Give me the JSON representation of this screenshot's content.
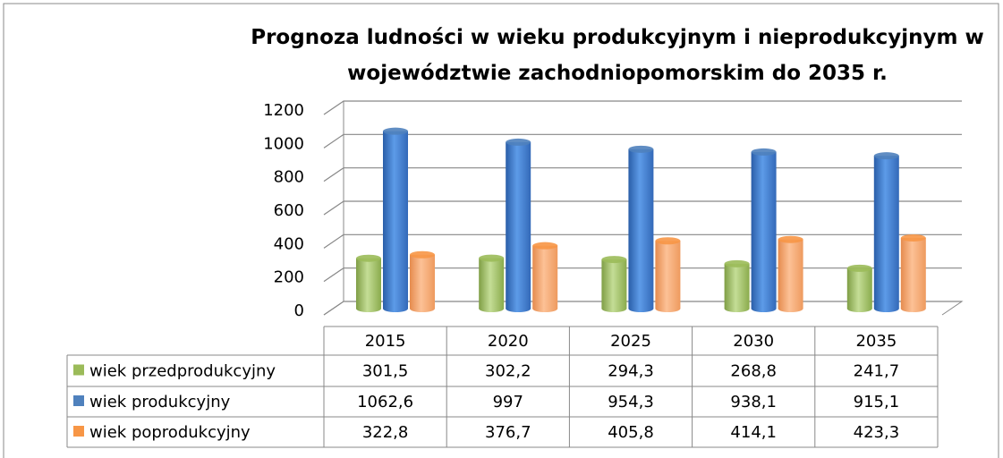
{
  "chart_data": {
    "type": "bar",
    "title": "Prognoza ludności w wieku produkcyjnym i nieprodukcyjnym w województwie zachodniopomorskim do 2035 r.",
    "categories": [
      "2015",
      "2020",
      "2025",
      "2030",
      "2035"
    ],
    "series": [
      {
        "name": "wiek przedprodukcyjny",
        "color": "#9bbb59",
        "values": [
          301.5,
          302.2,
          294.3,
          268.8,
          241.7
        ],
        "value_labels": [
          "301,5",
          "302,2",
          "294,3",
          "268,8",
          "241,7"
        ]
      },
      {
        "name": "wiek produkcyjny",
        "color": "#4f81bd",
        "values": [
          1062.6,
          997,
          954.3,
          938.1,
          915.1
        ],
        "value_labels": [
          "1062,6",
          "997",
          "954,3",
          "938,1",
          "915,1"
        ]
      },
      {
        "name": "wiek poprodukcyjny",
        "color": "#f79646",
        "values": [
          322.8,
          376.7,
          405.8,
          414.1,
          423.3
        ],
        "value_labels": [
          "322,8",
          "376,7",
          "405,8",
          "414,1",
          "423,3"
        ]
      }
    ],
    "ylim": [
      0,
      1200
    ],
    "yticks": [
      0,
      200,
      400,
      600,
      800,
      1000,
      1200
    ],
    "grid": true
  }
}
